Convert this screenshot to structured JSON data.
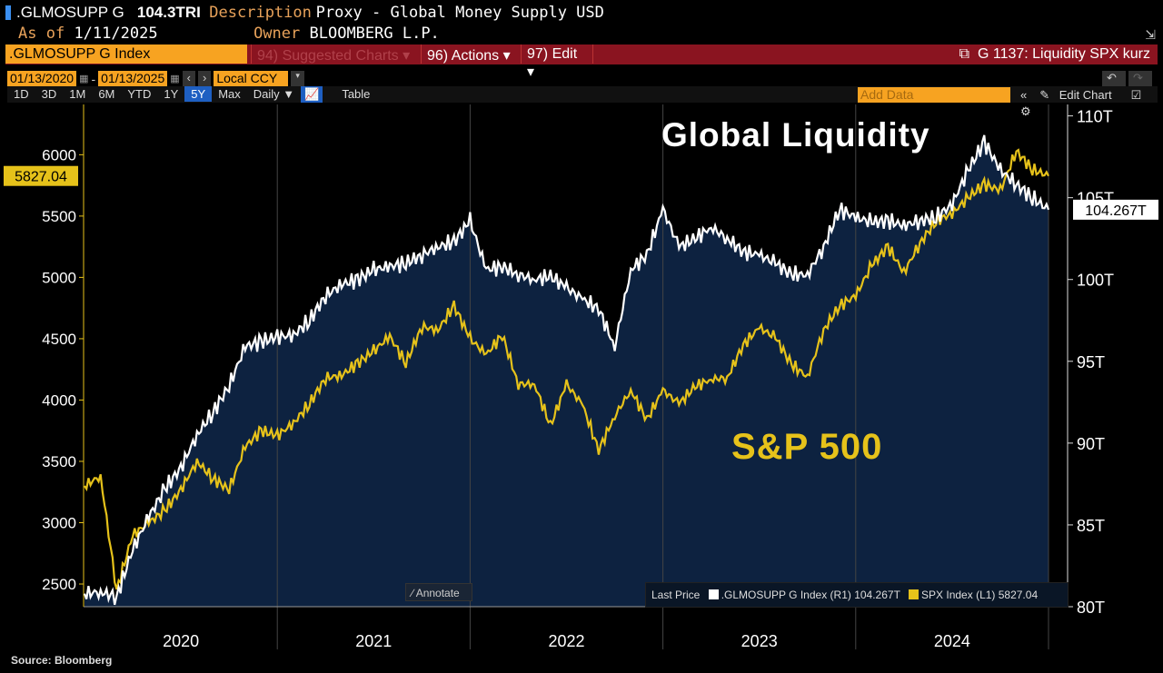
{
  "header": {
    "ticker": ".GLMOSUPP G",
    "value": "104.3TRI",
    "description_label": "Description",
    "description": "Proxy - Global Money Supply USD",
    "asof_label": "As of",
    "asof": "1/11/2025",
    "owner_label": "Owner",
    "owner": "BLOOMBERG L.P."
  },
  "menubar": {
    "security": ".GLMOSUPP G Index",
    "suggested": "94) Suggested Charts",
    "actions": "96) Actions",
    "edit": "97) Edit",
    "chart_name": "G 1137: Liquidity SPX kurz"
  },
  "controls": {
    "start_date": "01/13/2020",
    "end_date": "01/13/2025",
    "currency": "Local CCY",
    "ranges": [
      "1D",
      "3D",
      "1M",
      "6M",
      "YTD",
      "1Y",
      "5Y",
      "Max"
    ],
    "selected_range": "5Y",
    "frequency": "Daily ▼",
    "table": "Table",
    "add_data_placeholder": "Add Data",
    "edit_chart": "Edit Chart"
  },
  "footer": {
    "source": "Source: Bloomberg",
    "annotate": "Annotate"
  },
  "colors": {
    "liquidity": "#ffffff",
    "spx": "#e6c21a",
    "fill": "#0d2240",
    "menubar": "#8a1420",
    "accent": "#f7a321"
  },
  "chart_data": {
    "type": "line",
    "annotations": [
      "Global Liquidity",
      "S&P 500"
    ],
    "x_ticks": [
      "2020",
      "2021",
      "2022",
      "2023",
      "2024"
    ],
    "x": [
      "2020-01",
      "2020-02",
      "2020-03",
      "2020-04",
      "2020-05",
      "2020-06",
      "2020-07",
      "2020-08",
      "2020-09",
      "2020-10",
      "2020-11",
      "2020-12",
      "2021-01",
      "2021-02",
      "2021-03",
      "2021-04",
      "2021-05",
      "2021-06",
      "2021-07",
      "2021-08",
      "2021-09",
      "2021-10",
      "2021-11",
      "2021-12",
      "2022-01",
      "2022-02",
      "2022-03",
      "2022-04",
      "2022-05",
      "2022-06",
      "2022-07",
      "2022-08",
      "2022-09",
      "2022-10",
      "2022-11",
      "2022-12",
      "2023-01",
      "2023-02",
      "2023-03",
      "2023-04",
      "2023-05",
      "2023-06",
      "2023-07",
      "2023-08",
      "2023-09",
      "2023-10",
      "2023-11",
      "2023-12",
      "2024-01",
      "2024-02",
      "2024-03",
      "2024-04",
      "2024-05",
      "2024-06",
      "2024-07",
      "2024-08",
      "2024-09",
      "2024-10",
      "2024-11",
      "2024-12",
      "2025-01"
    ],
    "left_axis": {
      "ticks": [
        2500,
        3000,
        3500,
        4000,
        4500,
        5000,
        5500,
        6000
      ],
      "range": [
        2315,
        6410
      ],
      "last_label": "5827.04"
    },
    "right_axis": {
      "ticks": [
        "80T",
        "85T",
        "90T",
        "95T",
        "100T",
        "105T",
        "110T"
      ],
      "tick_values": [
        80,
        85,
        90,
        95,
        100,
        105,
        110
      ],
      "range": [
        80,
        110.7
      ],
      "last_label": "104.267T"
    },
    "legend": {
      "prefix": "Last Price",
      "items": [
        ".GLMOSUPP G Index  (R1) 104.267T",
        "SPX Index  (L1) 5827.04"
      ]
    },
    "series": [
      {
        "name": ".GLMOSUPP G Index",
        "axis": "right",
        "values": [
          80.8,
          80.9,
          80.6,
          83.5,
          85.5,
          87.2,
          88.5,
          90.5,
          91.9,
          93.5,
          95.9,
          96.2,
          96.5,
          96.6,
          97.5,
          99.0,
          99.7,
          100.0,
          100.6,
          100.8,
          101.0,
          101.5,
          102.0,
          102.3,
          103.6,
          100.6,
          100.8,
          100.3,
          100.0,
          100.2,
          99.5,
          98.8,
          98.2,
          95.9,
          100.6,
          101.5,
          104.3,
          102.0,
          102.5,
          103.2,
          102.5,
          101.7,
          101.5,
          101.0,
          100.3,
          100.3,
          102.0,
          104.3,
          103.8,
          103.5,
          103.6,
          103.3,
          103.6,
          103.8,
          104.6,
          106.7,
          108.4,
          106.7,
          105.8,
          105.0,
          104.267
        ]
      },
      {
        "name": "SPX Index",
        "axis": "left",
        "values": [
          3300,
          3380,
          2450,
          2900,
          3000,
          3100,
          3270,
          3500,
          3360,
          3270,
          3620,
          3750,
          3710,
          3810,
          3970,
          4180,
          4200,
          4300,
          4400,
          4520,
          4300,
          4600,
          4570,
          4770,
          4500,
          4370,
          4530,
          4130,
          4130,
          3790,
          4130,
          3960,
          3590,
          3870,
          4080,
          3840,
          4080,
          3970,
          4110,
          4170,
          4180,
          4450,
          4590,
          4510,
          4290,
          4190,
          4570,
          4770,
          4850,
          5100,
          5250,
          5040,
          5280,
          5460,
          5520,
          5650,
          5760,
          5710,
          6030,
          5880,
          5827.04
        ]
      }
    ]
  }
}
